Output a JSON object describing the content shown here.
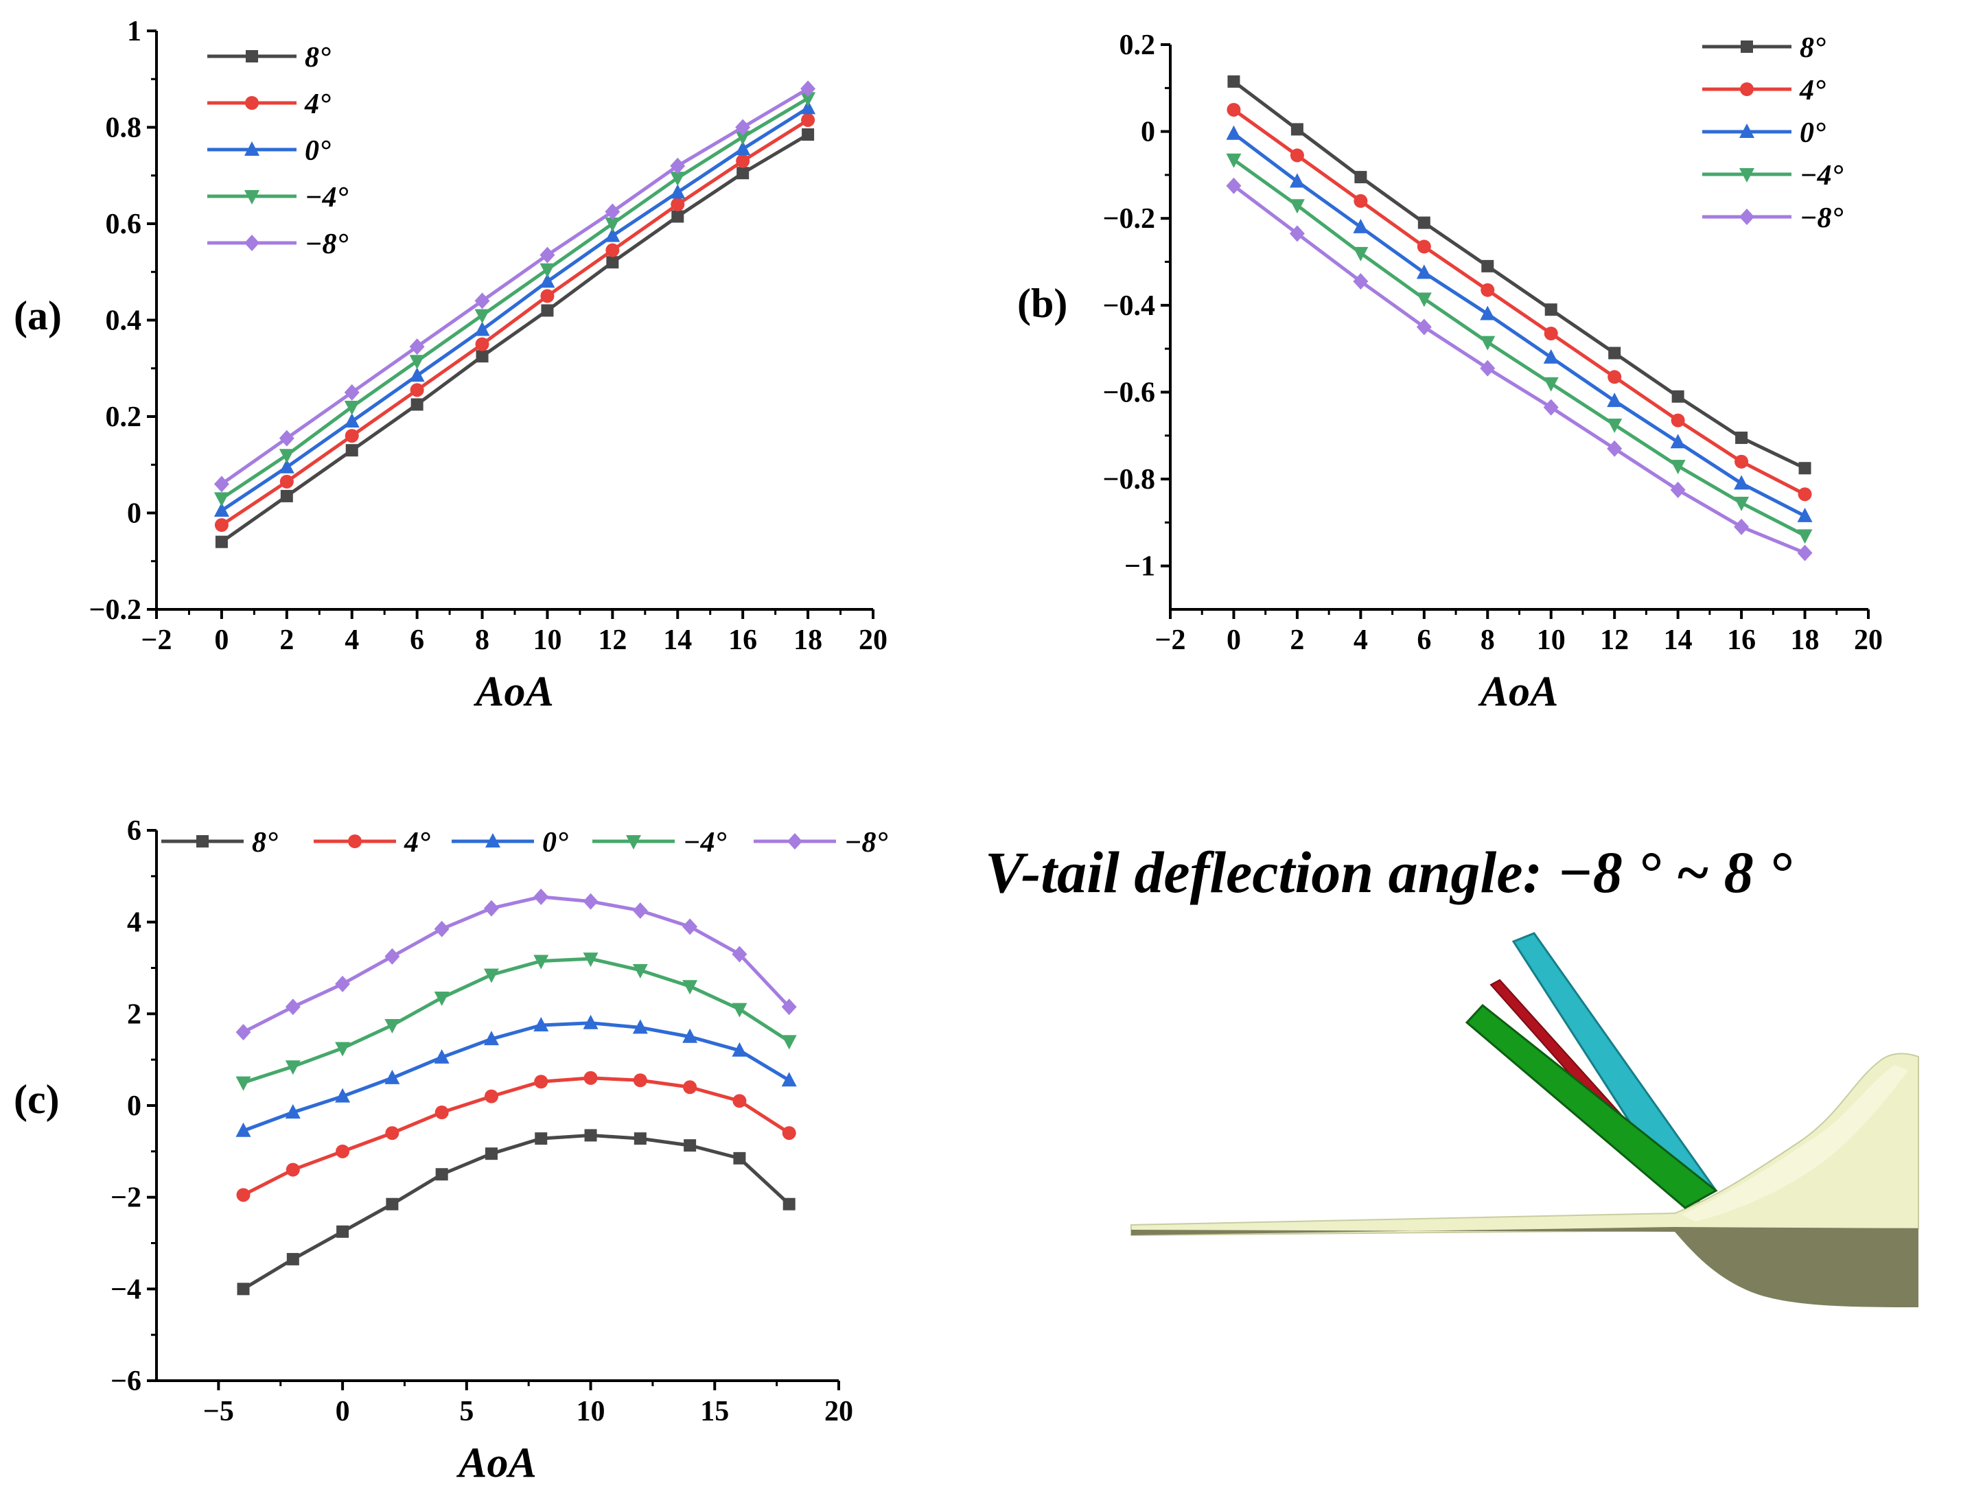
{
  "chart_data": [
    {
      "id": "a",
      "type": "line",
      "panel_label": "(a)",
      "xlabel": "AoA",
      "ylabel": "",
      "xlim": [
        -2,
        20
      ],
      "ylim": [
        -0.2,
        1
      ],
      "xticks": [
        -2,
        0,
        2,
        4,
        6,
        8,
        10,
        12,
        14,
        16,
        18,
        20
      ],
      "xtick_labels": [
        "−2",
        "0",
        "2",
        "4",
        "6",
        "8",
        "10",
        "12",
        "14",
        "16",
        "18",
        "20"
      ],
      "yticks": [
        -0.2,
        0,
        0.2,
        0.4,
        0.6,
        0.8,
        1
      ],
      "ytick_labels": [
        "−0.2",
        "0",
        "0.2",
        "0.4",
        "0.6",
        "0.8",
        "1"
      ],
      "legend_position": "top-left",
      "x": [
        0,
        2,
        4,
        6,
        8,
        10,
        12,
        14,
        16,
        18
      ],
      "series": [
        {
          "name": "8°",
          "values": [
            -0.06,
            0.035,
            0.13,
            0.225,
            0.325,
            0.42,
            0.52,
            0.615,
            0.705,
            0.785
          ]
        },
        {
          "name": "4°",
          "values": [
            -0.025,
            0.065,
            0.16,
            0.255,
            0.35,
            0.45,
            0.545,
            0.64,
            0.73,
            0.815
          ]
        },
        {
          "name": "0°",
          "values": [
            0.005,
            0.095,
            0.19,
            0.285,
            0.38,
            0.48,
            0.575,
            0.665,
            0.755,
            0.84
          ]
        },
        {
          "name": "−4°",
          "values": [
            0.03,
            0.12,
            0.22,
            0.315,
            0.41,
            0.505,
            0.6,
            0.695,
            0.78,
            0.86
          ]
        },
        {
          "name": "−8°",
          "values": [
            0.06,
            0.155,
            0.25,
            0.345,
            0.44,
            0.535,
            0.625,
            0.72,
            0.8,
            0.88
          ]
        }
      ]
    },
    {
      "id": "b",
      "type": "line",
      "panel_label": "(b)",
      "xlabel": "AoA",
      "ylabel": "",
      "xlim": [
        -2,
        20
      ],
      "ylim": [
        -1.1,
        0.2
      ],
      "xticks": [
        -2,
        0,
        2,
        4,
        6,
        8,
        10,
        12,
        14,
        16,
        18,
        20
      ],
      "xtick_labels": [
        "−2",
        "0",
        "2",
        "4",
        "6",
        "8",
        "10",
        "12",
        "14",
        "16",
        "18",
        "20"
      ],
      "yticks": [
        -1,
        -0.8,
        -0.6,
        -0.4,
        -0.2,
        0,
        0.2
      ],
      "ytick_labels": [
        "−1",
        "−0.8",
        "−0.6",
        "−0.4",
        "−0.2",
        "0",
        "0.2"
      ],
      "legend_position": "top-right",
      "x": [
        0,
        2,
        4,
        6,
        8,
        10,
        12,
        14,
        16,
        18
      ],
      "series": [
        {
          "name": "8°",
          "values": [
            0.115,
            0.005,
            -0.105,
            -0.21,
            -0.31,
            -0.41,
            -0.51,
            -0.61,
            -0.705,
            -0.775
          ]
        },
        {
          "name": "4°",
          "values": [
            0.05,
            -0.055,
            -0.16,
            -0.265,
            -0.365,
            -0.465,
            -0.565,
            -0.665,
            -0.76,
            -0.835
          ]
        },
        {
          "name": "0°",
          "values": [
            -0.005,
            -0.115,
            -0.22,
            -0.325,
            -0.42,
            -0.52,
            -0.62,
            -0.715,
            -0.81,
            -0.885
          ]
        },
        {
          "name": "−4°",
          "values": [
            -0.065,
            -0.17,
            -0.28,
            -0.385,
            -0.485,
            -0.58,
            -0.675,
            -0.77,
            -0.855,
            -0.93
          ]
        },
        {
          "name": "−8°",
          "values": [
            -0.125,
            -0.235,
            -0.345,
            -0.45,
            -0.545,
            -0.635,
            -0.73,
            -0.825,
            -0.91,
            -0.97
          ]
        }
      ]
    },
    {
      "id": "c",
      "type": "line",
      "panel_label": "(c)",
      "xlabel": "AoA",
      "ylabel": "",
      "xlim": [
        -7.5,
        20
      ],
      "ylim": [
        -6,
        6
      ],
      "xticks": [
        -5,
        0,
        5,
        10,
        15,
        20
      ],
      "xtick_labels": [
        "−5",
        "0",
        "5",
        "10",
        "15",
        "20"
      ],
      "yticks": [
        -6,
        -4,
        -2,
        0,
        2,
        4,
        6
      ],
      "ytick_labels": [
        "−6",
        "−4",
        "−2",
        "0",
        "2",
        "4",
        "6"
      ],
      "legend_position": "top (horizontal)",
      "x": [
        -4,
        -2,
        0,
        2,
        4,
        6,
        8,
        10,
        12,
        14,
        16,
        18
      ],
      "series": [
        {
          "name": "8°",
          "values": [
            -4.0,
            -3.35,
            -2.75,
            -2.15,
            -1.5,
            -1.05,
            -0.72,
            -0.65,
            -0.72,
            -0.87,
            -1.15,
            -2.15
          ]
        },
        {
          "name": "4°",
          "values": [
            -1.95,
            -1.4,
            -1.0,
            -0.6,
            -0.15,
            0.2,
            0.52,
            0.6,
            0.55,
            0.4,
            0.1,
            -0.6
          ]
        },
        {
          "name": "0°",
          "values": [
            -0.55,
            -0.15,
            0.2,
            0.6,
            1.05,
            1.45,
            1.75,
            1.8,
            1.7,
            1.5,
            1.2,
            0.55
          ]
        },
        {
          "name": "−4°",
          "values": [
            0.5,
            0.85,
            1.25,
            1.75,
            2.35,
            2.85,
            3.15,
            3.2,
            2.95,
            2.6,
            2.1,
            1.4
          ]
        },
        {
          "name": "−8°",
          "values": [
            1.6,
            2.15,
            2.65,
            3.25,
            3.85,
            4.3,
            4.55,
            4.45,
            4.25,
            3.9,
            3.3,
            2.15
          ]
        }
      ]
    }
  ],
  "series_style": [
    {
      "color": "#484848",
      "marker": "square"
    },
    {
      "color": "#e8403a",
      "marker": "circle"
    },
    {
      "color": "#2e6bd6",
      "marker": "triangle-up"
    },
    {
      "color": "#45a86a",
      "marker": "triangle-down"
    },
    {
      "color": "#a57ce0",
      "marker": "diamond"
    }
  ],
  "illustration": {
    "title": "V-tail deflection angle: −8 ° ~ 8 °",
    "image_name": "v-tail-model-render",
    "colors": {
      "fuselage": "#eef1c8",
      "fuselage_shadow": "#7d7f5c",
      "tail_cyan": "#2bb7c4",
      "tail_red": "#b0121e",
      "tail_green": "#159a1c"
    }
  }
}
